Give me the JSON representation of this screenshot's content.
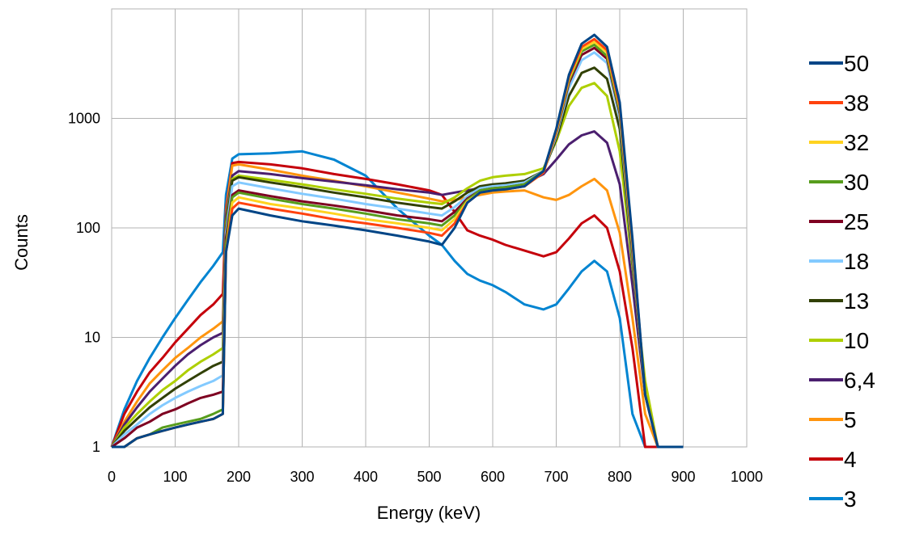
{
  "chart_data": {
    "type": "line",
    "title": "",
    "xlabel": "Energy (keV)",
    "ylabel": "Counts",
    "xlim": [
      0,
      1000
    ],
    "ylim": [
      1,
      10000
    ],
    "yscale": "log",
    "grid": true,
    "legend_position": "right",
    "x_ticks": [
      0,
      100,
      200,
      300,
      400,
      500,
      600,
      700,
      800,
      900,
      1000
    ],
    "y_ticks": [
      1,
      10,
      100,
      1000
    ],
    "x_tick_labels": [
      "0",
      "100",
      "200",
      "300",
      "400",
      "500",
      "600",
      "700",
      "800",
      "900",
      "1000"
    ],
    "y_tick_labels": [
      "1",
      "10",
      "100",
      "1000"
    ],
    "x": [
      0,
      20,
      40,
      60,
      80,
      100,
      120,
      140,
      160,
      175,
      180,
      190,
      200,
      250,
      300,
      350,
      400,
      450,
      500,
      520,
      540,
      560,
      580,
      600,
      620,
      650,
      680,
      700,
      720,
      740,
      760,
      780,
      800,
      820,
      840,
      860,
      880,
      900
    ],
    "series": [
      {
        "name": "50",
        "color": "#004586",
        "values": [
          1,
          1,
          1.2,
          1.3,
          1.4,
          1.5,
          1.6,
          1.7,
          1.8,
          2,
          60,
          130,
          150,
          130,
          115,
          105,
          95,
          85,
          75,
          70,
          100,
          170,
          210,
          220,
          225,
          240,
          330,
          800,
          2500,
          4800,
          5800,
          4500,
          1400,
          80,
          3,
          1,
          1,
          1
        ]
      },
      {
        "name": "38",
        "color": "#ff420e",
        "values": [
          1,
          1,
          1.2,
          1.3,
          1.4,
          1.5,
          1.6,
          1.7,
          1.8,
          2,
          60,
          150,
          170,
          150,
          135,
          120,
          110,
          100,
          90,
          85,
          110,
          170,
          210,
          220,
          225,
          240,
          320,
          780,
          2400,
          4500,
          5300,
          4200,
          1300,
          75,
          3,
          1,
          1,
          1
        ]
      },
      {
        "name": "32",
        "color": "#ffd320",
        "values": [
          1,
          1,
          1.2,
          1.3,
          1.4,
          1.5,
          1.6,
          1.7,
          1.8,
          2,
          60,
          170,
          190,
          165,
          150,
          135,
          120,
          110,
          100,
          95,
          120,
          175,
          210,
          220,
          225,
          240,
          320,
          750,
          2300,
          4300,
          5000,
          4000,
          1250,
          70,
          3,
          1,
          1,
          1
        ]
      },
      {
        "name": "30",
        "color": "#579d1c",
        "values": [
          1,
          1,
          1.2,
          1.3,
          1.5,
          1.6,
          1.7,
          1.8,
          2,
          2.2,
          70,
          190,
          210,
          185,
          165,
          150,
          135,
          120,
          110,
          105,
          130,
          180,
          220,
          230,
          235,
          250,
          330,
          740,
          2200,
          4100,
          4700,
          3700,
          1150,
          65,
          3,
          1,
          1,
          1
        ]
      },
      {
        "name": "25",
        "color": "#7e0021",
        "values": [
          1,
          1.2,
          1.5,
          1.7,
          2,
          2.2,
          2.5,
          2.8,
          3,
          3.2,
          80,
          200,
          220,
          195,
          175,
          160,
          145,
          130,
          120,
          115,
          140,
          185,
          220,
          230,
          235,
          250,
          330,
          720,
          2100,
          3800,
          4400,
          3500,
          1100,
          60,
          3,
          1,
          1,
          1
        ]
      },
      {
        "name": "18",
        "color": "#83caff",
        "values": [
          1,
          1.3,
          1.6,
          2,
          2.4,
          2.8,
          3.2,
          3.6,
          4,
          4.5,
          90,
          240,
          260,
          230,
          205,
          185,
          165,
          150,
          135,
          130,
          155,
          195,
          230,
          240,
          245,
          260,
          330,
          690,
          1900,
          3400,
          4000,
          3200,
          1000,
          55,
          3,
          1,
          1,
          1
        ]
      },
      {
        "name": "13",
        "color": "#314004",
        "values": [
          1,
          1.4,
          1.8,
          2.3,
          2.8,
          3.4,
          4,
          4.7,
          5.5,
          6,
          100,
          270,
          290,
          260,
          235,
          210,
          190,
          170,
          155,
          150,
          175,
          210,
          240,
          250,
          255,
          270,
          330,
          650,
          1600,
          2600,
          2900,
          2300,
          800,
          50,
          3,
          1,
          1,
          1
        ]
      },
      {
        "name": "10",
        "color": "#aecf00",
        "values": [
          1,
          1.5,
          2,
          2.6,
          3.3,
          4,
          5,
          6,
          7,
          8,
          110,
          280,
          300,
          275,
          250,
          225,
          205,
          185,
          170,
          165,
          190,
          230,
          270,
          290,
          300,
          310,
          350,
          620,
          1300,
          1900,
          2100,
          1600,
          500,
          45,
          4,
          1,
          1,
          1
        ]
      },
      {
        "name": "6,4",
        "color": "#4b1f6f",
        "values": [
          1,
          1.6,
          2.3,
          3.2,
          4.2,
          5.5,
          7,
          8.5,
          10,
          11,
          130,
          300,
          330,
          310,
          285,
          265,
          245,
          225,
          210,
          200,
          210,
          220,
          230,
          240,
          245,
          255,
          310,
          420,
          580,
          700,
          760,
          600,
          250,
          30,
          3,
          1,
          1,
          1
        ]
      },
      {
        "name": "5",
        "color": "#ff950e",
        "values": [
          1,
          1.7,
          2.6,
          3.8,
          5,
          6.5,
          8,
          10,
          12,
          14,
          140,
          370,
          380,
          340,
          300,
          270,
          240,
          210,
          185,
          175,
          180,
          190,
          200,
          210,
          215,
          220,
          190,
          180,
          200,
          240,
          280,
          220,
          90,
          15,
          2,
          1,
          1,
          1
        ]
      },
      {
        "name": "4",
        "color": "#c5000b",
        "values": [
          1,
          2,
          3.2,
          4.8,
          6.5,
          9,
          12,
          16,
          20,
          25,
          150,
          390,
          400,
          380,
          350,
          310,
          280,
          250,
          220,
          200,
          140,
          95,
          85,
          78,
          70,
          62,
          55,
          60,
          80,
          110,
          130,
          100,
          40,
          8,
          1,
          1,
          1,
          1
        ]
      },
      {
        "name": "3",
        "color": "#0084d1",
        "values": [
          1,
          2.2,
          4,
          6.5,
          10,
          15,
          22,
          32,
          45,
          60,
          200,
          430,
          470,
          480,
          500,
          420,
          300,
          150,
          85,
          70,
          50,
          38,
          33,
          30,
          26,
          20,
          18,
          20,
          28,
          40,
          50,
          40,
          15,
          2,
          1,
          1,
          1,
          1
        ]
      }
    ]
  }
}
